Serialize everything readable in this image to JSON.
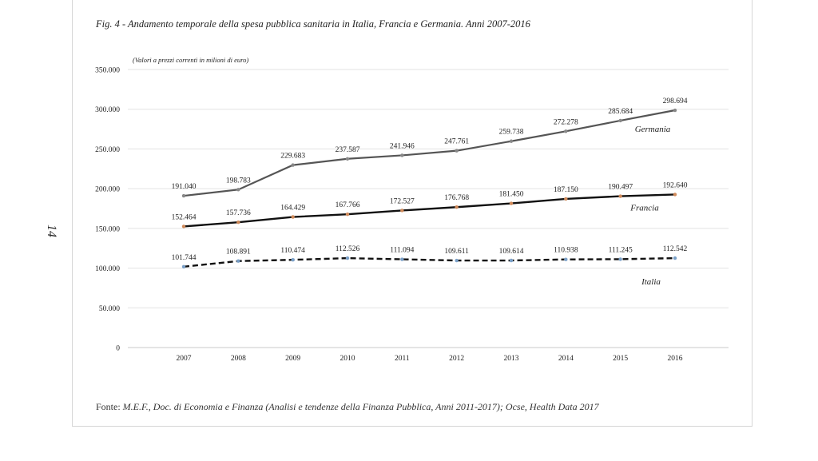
{
  "page": {
    "page_number": "14",
    "title": "Fig. 4 - Andamento temporale della spesa pubblica sanitaria in Italia, Francia e Germania. Anni 2007-2016",
    "source_prefix": "Fonte: ",
    "source_text": "M.E.F., Doc. di Economia e Finanza (Analisi e tendenze della Finanza Pubblica, Anni 2011-2017); Ocse, Health Data 2017"
  },
  "chart_data": {
    "type": "line",
    "title": "Fig. 4 - Andamento temporale della spesa pubblica sanitaria in Italia, Francia e Germania. Anni 2007-2016",
    "unit_note": "(Valori a prezzi correnti in milioni di euro)",
    "xlabel": "",
    "ylabel": "",
    "ylim": [
      0,
      350000
    ],
    "y_ticks": [
      0,
      50000,
      100000,
      150000,
      200000,
      250000,
      300000,
      350000
    ],
    "y_tick_labels": [
      "0",
      "50.000",
      "100.000",
      "150.000",
      "200.000",
      "250.000",
      "300.000",
      "350.000"
    ],
    "categories": [
      "2007",
      "2008",
      "2009",
      "2010",
      "2011",
      "2012",
      "2013",
      "2014",
      "2015",
      "2016"
    ],
    "grid": true,
    "series": [
      {
        "name": "Germania",
        "values": [
          191040,
          198783,
          229683,
          237587,
          241946,
          247761,
          259738,
          272278,
          285684,
          298694
        ],
        "labels": [
          "191.040",
          "198.783",
          "229.683",
          "237.587",
          "241.946",
          "247.761",
          "259.738",
          "272.278",
          "285.684",
          "298.694"
        ],
        "color": "#555555",
        "style": "solid"
      },
      {
        "name": "Francia",
        "values": [
          152464,
          157736,
          164429,
          167766,
          172527,
          176768,
          181450,
          187150,
          190497,
          192640
        ],
        "labels": [
          "152.464",
          "157.736",
          "164.429",
          "167.766",
          "172.527",
          "176.768",
          "181.450",
          "187.150",
          "190.497",
          "192.640"
        ],
        "color": "#111111",
        "style": "solid"
      },
      {
        "name": "Italia",
        "values": [
          101744,
          108891,
          110474,
          112526,
          111094,
          109611,
          109614,
          110938,
          111245,
          112542
        ],
        "labels": [
          "101.744",
          "108.891",
          "110.474",
          "112.526",
          "111.094",
          "109.611",
          "109.614",
          "110.938",
          "111.245",
          "112.542"
        ],
        "color": "#111111",
        "style": "dashed"
      }
    ]
  }
}
